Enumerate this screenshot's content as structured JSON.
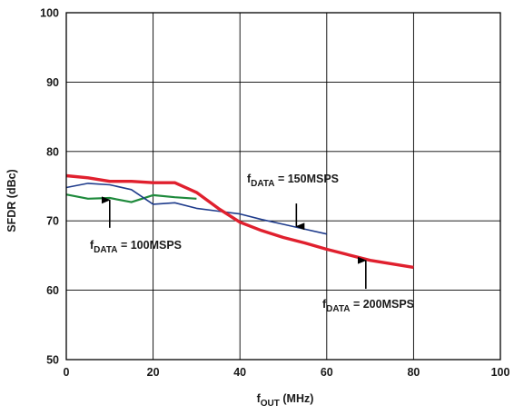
{
  "chart_data": {
    "type": "line",
    "xlabel": {
      "main": "f",
      "sub": "OUT",
      "rest": " (MHz)"
    },
    "ylabel": "SFDR (dBc)",
    "xlim": [
      0,
      100
    ],
    "ylim": [
      50,
      100
    ],
    "x_ticks": [
      "0",
      "20",
      "40",
      "60",
      "80",
      "100"
    ],
    "y_ticks": [
      "50",
      "60",
      "70",
      "80",
      "90",
      "100"
    ],
    "grid": true,
    "legend": "none",
    "series": [
      {
        "name": "fDATA = 100MSPS",
        "color": "#1e8a3c",
        "x": [
          0,
          5,
          10,
          15,
          20,
          25,
          30
        ],
        "y": [
          73.8,
          73.2,
          73.3,
          72.7,
          73.7,
          73.4,
          73.2
        ]
      },
      {
        "name": "fDATA = 150MSPS",
        "color": "#1f3c8c",
        "x": [
          0,
          5,
          10,
          15,
          20,
          25,
          30,
          35,
          40,
          45,
          50,
          55,
          60
        ],
        "y": [
          74.8,
          75.4,
          75.2,
          74.5,
          72.4,
          72.6,
          71.8,
          71.4,
          71.0,
          70.2,
          69.5,
          68.8,
          68.1
        ]
      },
      {
        "name": "fDATA = 200MSPS",
        "color": "#e0202e",
        "x": [
          0,
          5,
          10,
          15,
          20,
          25,
          30,
          35,
          40,
          45,
          50,
          55,
          60,
          65,
          70,
          75,
          80
        ],
        "y": [
          76.5,
          76.2,
          75.7,
          75.7,
          75.5,
          75.5,
          74.1,
          71.8,
          69.8,
          68.6,
          67.6,
          66.8,
          65.9,
          65.1,
          64.3,
          63.8,
          63.3
        ]
      }
    ],
    "annotations": [
      {
        "main": "f",
        "sub": "DATA",
        "rest": " = 150MSPS",
        "arrow_x": 53,
        "arrow_y_from": 72.5,
        "arrow_y_to": 69.2
      },
      {
        "main": "f",
        "sub": "DATA",
        "rest": " = 100MSPS",
        "arrow_x": 10,
        "arrow_y_from": 69.0,
        "arrow_y_to": 73.0
      },
      {
        "main": "f",
        "sub": "DATA",
        "rest": " = 200MSPS",
        "arrow_x": 69,
        "arrow_y_from": 60.2,
        "arrow_y_to": 64.3
      }
    ]
  }
}
